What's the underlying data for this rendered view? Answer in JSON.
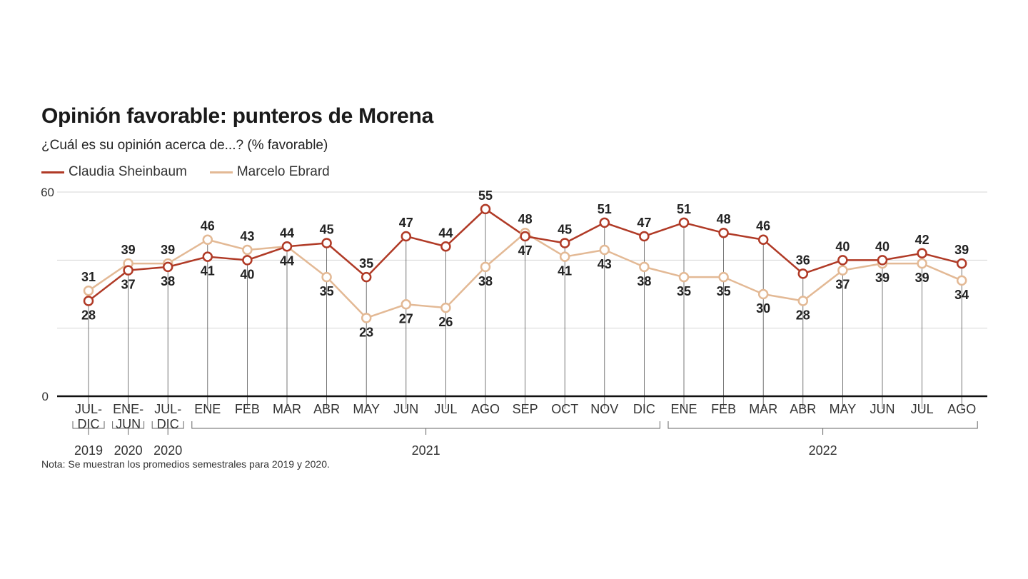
{
  "chart_data": {
    "type": "line",
    "title": "Opinión favorable: punteros de Morena",
    "subtitle": "¿Cuál es su opinión acerca de...? (% favorable)",
    "note": "Nota: Se muestran los promedios semestrales para 2019 y 2020.",
    "ylim": [
      0,
      60
    ],
    "y_ticks": [
      "0",
      "60"
    ],
    "grid": true,
    "legend_position": "top-left",
    "categories": [
      {
        "label": [
          "JUL-",
          "DIC"
        ]
      },
      {
        "label": [
          "ENE-",
          "JUN"
        ]
      },
      {
        "label": [
          "JUL-",
          "DIC"
        ]
      },
      {
        "label": [
          "ENE"
        ]
      },
      {
        "label": [
          "FEB"
        ]
      },
      {
        "label": [
          "MAR"
        ]
      },
      {
        "label": [
          "ABR"
        ]
      },
      {
        "label": [
          "MAY"
        ]
      },
      {
        "label": [
          "JUN"
        ]
      },
      {
        "label": [
          "JUL"
        ]
      },
      {
        "label": [
          "AGO"
        ]
      },
      {
        "label": [
          "SEP"
        ]
      },
      {
        "label": [
          "OCT"
        ]
      },
      {
        "label": [
          "NOV"
        ]
      },
      {
        "label": [
          "DIC"
        ]
      },
      {
        "label": [
          "ENE"
        ]
      },
      {
        "label": [
          "FEB"
        ]
      },
      {
        "label": [
          "MAR"
        ]
      },
      {
        "label": [
          "ABR"
        ]
      },
      {
        "label": [
          "MAY"
        ]
      },
      {
        "label": [
          "JUN"
        ]
      },
      {
        "label": [
          "JUL"
        ]
      },
      {
        "label": [
          "AGO"
        ]
      }
    ],
    "year_groups": [
      {
        "label": "2019",
        "from": 0,
        "to": 0
      },
      {
        "label": "2020",
        "from": 1,
        "to": 1
      },
      {
        "label": "2020",
        "from": 2,
        "to": 2
      },
      {
        "label": "2021",
        "from": 3,
        "to": 14
      },
      {
        "label": "2022",
        "from": 15,
        "to": 22
      }
    ],
    "series": [
      {
        "name": "Claudia Sheinbaum",
        "color": "#b03a26",
        "values": [
          28,
          37,
          38,
          41,
          40,
          44,
          45,
          35,
          47,
          44,
          55,
          47,
          45,
          51,
          47,
          51,
          48,
          46,
          36,
          40,
          40,
          42,
          39
        ],
        "label_pos": [
          "below",
          "below",
          "below",
          "below",
          "below",
          "below",
          "above",
          "above",
          "above",
          "above",
          "above",
          "below",
          "above",
          "above",
          "above",
          "above",
          "above",
          "above",
          "above",
          "above",
          "above",
          "above",
          "above"
        ]
      },
      {
        "name": "Marcelo Ebrard",
        "color": "#e3b995",
        "values": [
          31,
          39,
          39,
          46,
          43,
          44,
          35,
          23,
          27,
          26,
          38,
          48,
          41,
          43,
          38,
          35,
          35,
          30,
          28,
          37,
          39,
          39,
          34
        ],
        "label_pos": [
          "above",
          "above",
          "above",
          "above",
          "above",
          "above",
          "below",
          "below",
          "below",
          "below",
          "below",
          "above",
          "below",
          "below",
          "below",
          "below",
          "below",
          "below",
          "below",
          "below",
          "below",
          "below",
          "below"
        ]
      }
    ]
  }
}
